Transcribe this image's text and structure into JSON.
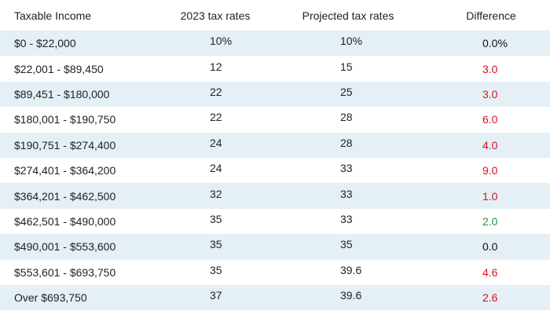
{
  "table": {
    "header": [
      "Taxable Income",
      "2023 tax rates",
      "Projected tax rates",
      "Difference"
    ],
    "rows": [
      [
        "$0 - $22,000",
        "10%",
        "10%",
        "0.0%"
      ],
      [
        "$22,001 - $89,450",
        "12",
        "15",
        "3.0"
      ],
      [
        "$89,451 - $180,000",
        "22",
        "25",
        "3.0"
      ],
      [
        "$180,001 - $190,750",
        "22",
        "28",
        "6.0"
      ],
      [
        "$190,751 - $274,400",
        "24",
        "28",
        "4.0"
      ],
      [
        "$274,401 - $364,200",
        "24",
        "33",
        "9.0"
      ],
      [
        "$364,201 - $462,500",
        "32",
        "33",
        "1.0"
      ],
      [
        "$462,501 - $490,000",
        "35",
        "33",
        "2.0"
      ],
      [
        "$490,001 - $553,600",
        "35",
        "35",
        "0.0"
      ],
      [
        "$553,601 - $693,750",
        "35",
        "39.6",
        "4.6"
      ],
      [
        "Over $693,750",
        "37",
        "39.6",
        "2.6"
      ]
    ],
    "difference_colors": [
      "#111111",
      "#d9131b",
      "#d9131b",
      "#d9131b",
      "#d9131b",
      "#d9131b",
      "#d9131b",
      "#1a9a3c",
      "#111111",
      "#d9131b",
      "#d9131b"
    ],
    "stripe_color": "#e4eff6"
  }
}
